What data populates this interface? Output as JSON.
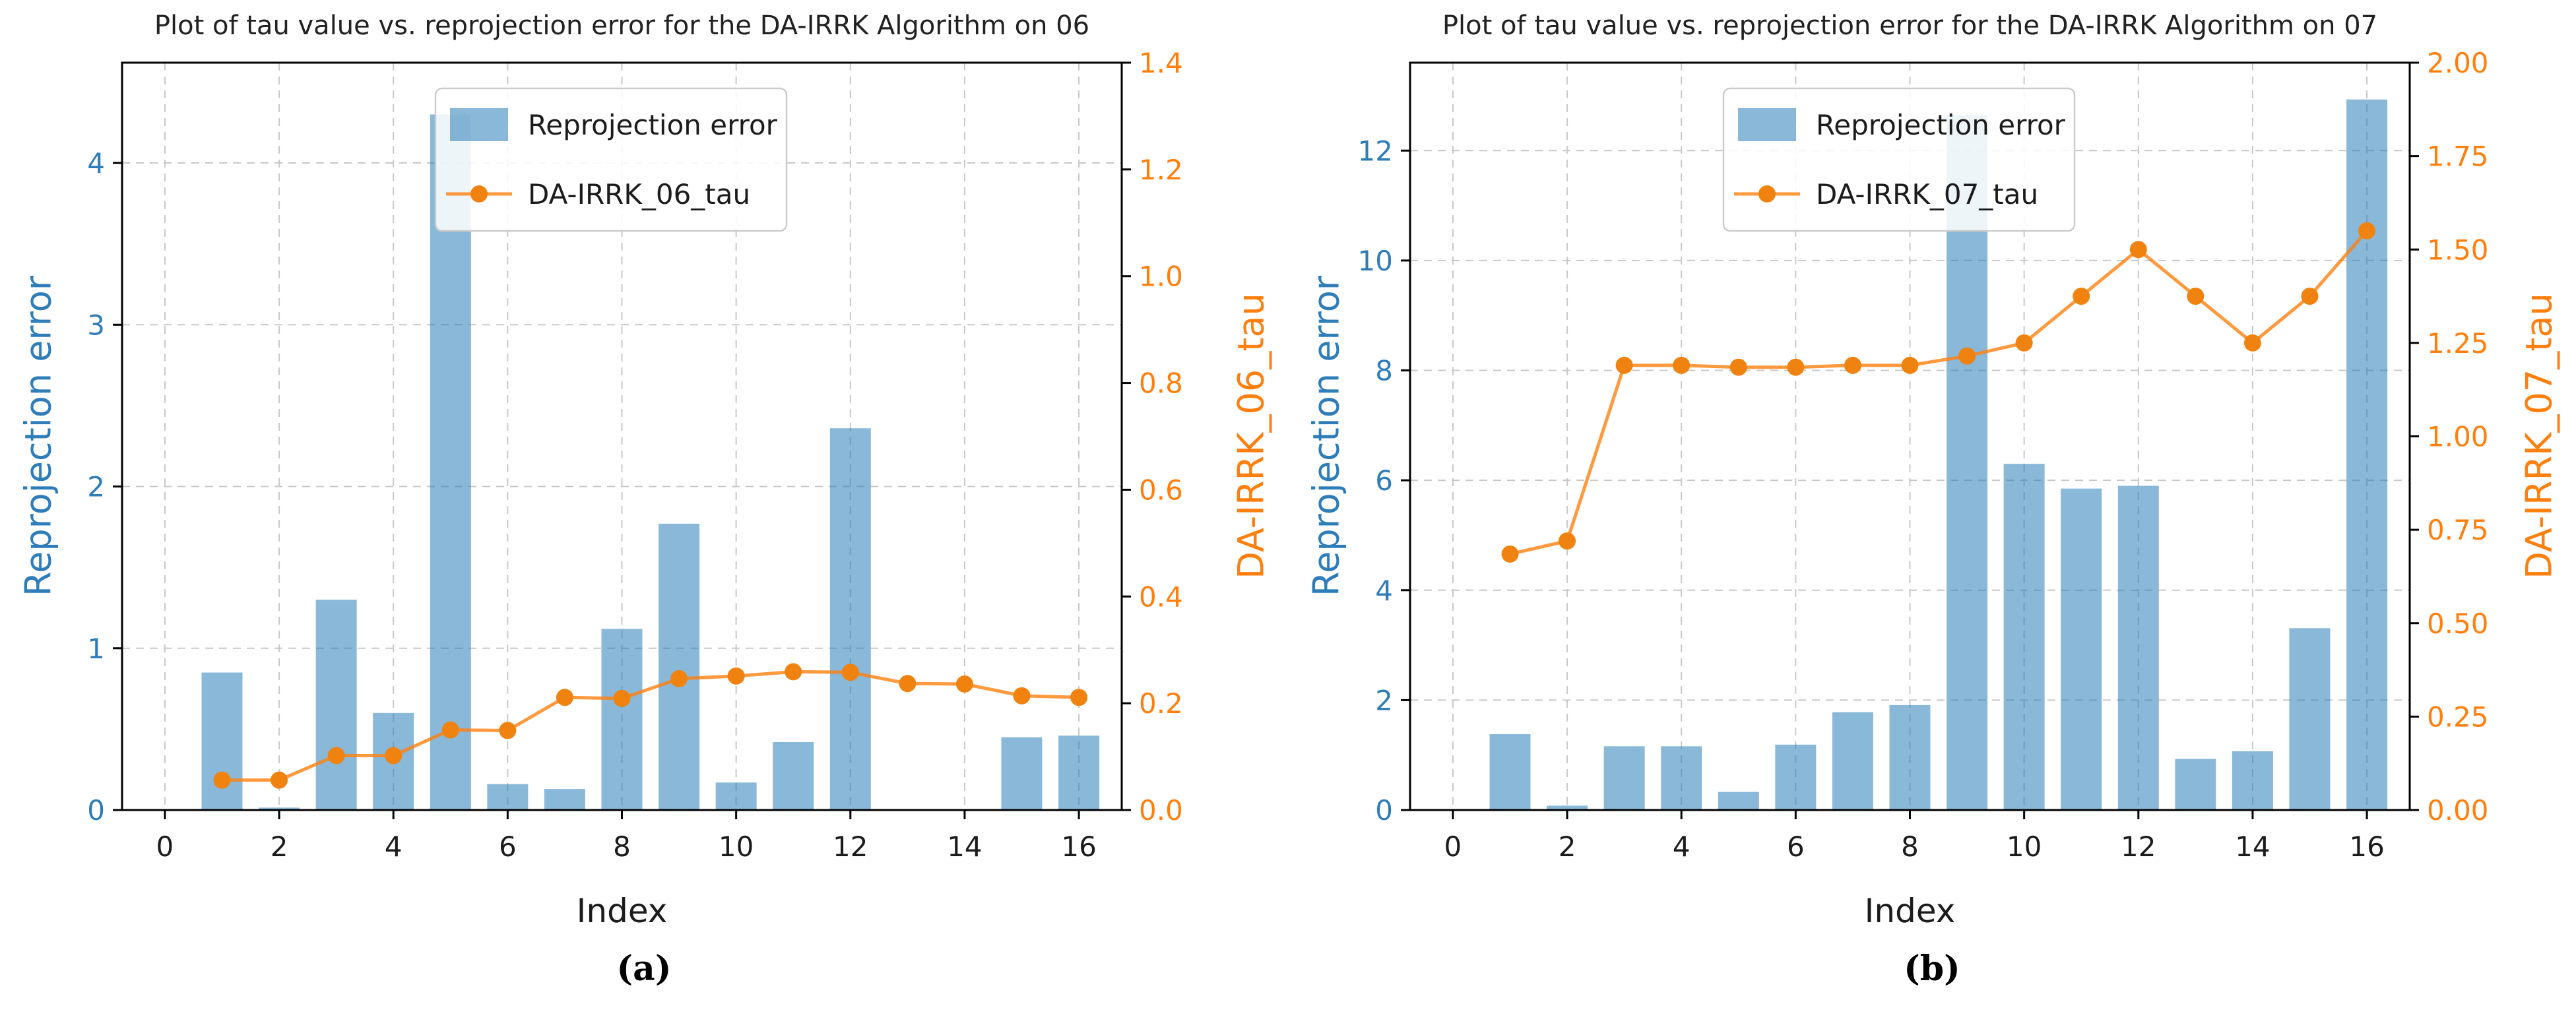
{
  "page": {
    "background": "#ffffff"
  },
  "colors": {
    "bar": "rgba(31,119,180,0.52)",
    "line": "rgba(255,127,14,0.8)",
    "marker": "#f0830f",
    "grid": "#c8c8c8",
    "axis_left_text": "#2e7cb8",
    "axis_right_text": "#ff7f0e",
    "xtick_text": "#1b1b1b",
    "title_text": "#212121"
  },
  "chart_data": [
    {
      "id": "a",
      "type": "bar+line",
      "title": "Plot of tau value vs. reprojection error for the DA-IRRK Algorithm on 06",
      "caption": "(a)",
      "xlabel": "Index",
      "ylabel_left": "Reprojection error",
      "ylabel_right": "DA-IRRK_06_tau",
      "legend_position": "upper center",
      "grid": true,
      "x": [
        1,
        2,
        3,
        4,
        5,
        6,
        7,
        8,
        9,
        10,
        11,
        12,
        13,
        14,
        15,
        16
      ],
      "series": [
        {
          "name": "Reprojection error",
          "type": "bar",
          "axis": "left",
          "values": [
            0.85,
            0.015,
            1.3,
            0.6,
            4.3,
            0.16,
            0.13,
            1.12,
            1.77,
            0.17,
            0.42,
            2.36,
            0,
            0,
            0.45,
            0.46
          ]
        },
        {
          "name": "DA-IRRK_06_tau",
          "type": "line",
          "axis": "right",
          "values": [
            0.056,
            0.056,
            0.102,
            0.102,
            0.15,
            0.149,
            0.211,
            0.209,
            0.246,
            0.251,
            0.259,
            0.258,
            0.237,
            0.236,
            0.214,
            0.211
          ]
        }
      ],
      "xlim": [
        -0.75,
        16.75
      ],
      "ylim_left": [
        0,
        4.62
      ],
      "ylim_right": [
        0,
        1.4
      ],
      "xticks": [
        0,
        2,
        4,
        6,
        8,
        10,
        12,
        14,
        16
      ],
      "yticks_left": [
        0,
        1,
        2,
        3,
        4
      ],
      "yticks_right": [
        0.0,
        0.2,
        0.4,
        0.6,
        0.8,
        1.0,
        1.2,
        1.4
      ],
      "yticks_right_labels": [
        "0.0",
        "0.2",
        "0.4",
        "0.6",
        "0.8",
        "1.0",
        "1.2",
        "1.4"
      ]
    },
    {
      "id": "b",
      "type": "bar+line",
      "title": "Plot of tau value vs. reprojection error for the DA-IRRK Algorithm on 07",
      "caption": "(b)",
      "xlabel": "Index",
      "ylabel_left": "Reprojection error",
      "ylabel_right": "DA-IRRK_07_tau",
      "legend_position": "upper center",
      "grid": true,
      "x": [
        1,
        2,
        3,
        4,
        5,
        6,
        7,
        8,
        9,
        10,
        11,
        12,
        13,
        14,
        15,
        16
      ],
      "series": [
        {
          "name": "Reprojection error",
          "type": "bar",
          "axis": "left",
          "values": [
            1.38,
            0.08,
            1.16,
            1.16,
            0.33,
            1.19,
            1.78,
            1.91,
            12.65,
            6.3,
            5.85,
            5.9,
            0.93,
            1.07,
            3.31,
            12.93
          ]
        },
        {
          "name": "DA-IRRK_07_tau",
          "type": "line",
          "axis": "right",
          "values": [
            0.685,
            0.72,
            1.19,
            1.19,
            1.185,
            1.185,
            1.19,
            1.19,
            1.215,
            1.25,
            1.375,
            1.5,
            1.375,
            1.25,
            1.375,
            1.55
          ]
        }
      ],
      "xlim": [
        -0.75,
        16.75
      ],
      "ylim_left": [
        0,
        13.6
      ],
      "ylim_right": [
        0,
        2.0
      ],
      "xticks": [
        0,
        2,
        4,
        6,
        8,
        10,
        12,
        14,
        16
      ],
      "yticks_left": [
        0,
        2,
        4,
        6,
        8,
        10,
        12
      ],
      "yticks_right": [
        0.0,
        0.25,
        0.5,
        0.75,
        1.0,
        1.25,
        1.5,
        1.75,
        2.0
      ],
      "yticks_right_labels": [
        "0.00",
        "0.25",
        "0.50",
        "0.75",
        "1.00",
        "1.25",
        "1.50",
        "1.75",
        "2.00"
      ]
    }
  ]
}
